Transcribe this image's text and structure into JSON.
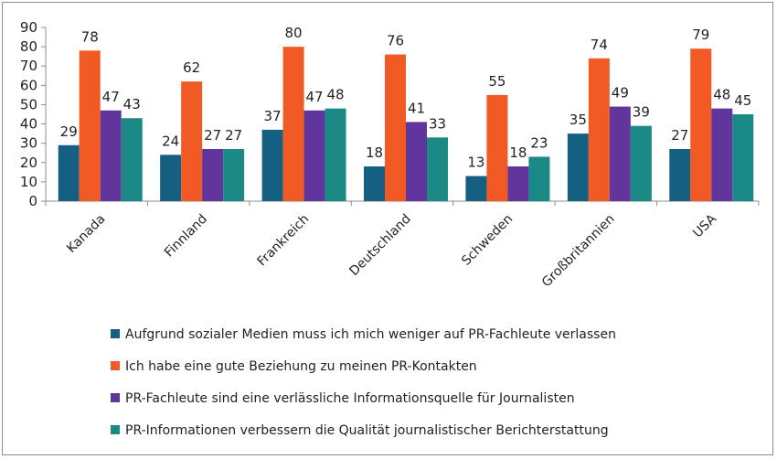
{
  "chart_data": {
    "type": "bar",
    "categories": [
      "Kanada",
      "Finnland",
      "Frankreich",
      "Deutschland",
      "Schweden",
      "Großbritannien",
      "USA"
    ],
    "series": [
      {
        "name": "Aufgrund sozialer Medien muss ich mich weniger auf PR-Fachleute verlassen",
        "color": "#156082",
        "values": [
          29,
          24,
          37,
          18,
          13,
          35,
          27
        ]
      },
      {
        "name": "Ich habe eine gute Beziehung zu meinen PR-Kontakten",
        "color": "#f15a24",
        "values": [
          78,
          62,
          80,
          76,
          55,
          74,
          79
        ]
      },
      {
        "name": "PR-Fachleute sind eine verlässliche Informationsquelle für Journalisten",
        "color": "#60359c",
        "values": [
          47,
          27,
          47,
          41,
          18,
          49,
          48
        ]
      },
      {
        "name": "PR-Informationen verbessern die Qualität journalistischer Berichterstattung",
        "color": "#1b8a87",
        "values": [
          43,
          27,
          48,
          33,
          23,
          39,
          45
        ]
      }
    ],
    "ylim": [
      0,
      90
    ],
    "yticks": [
      0,
      10,
      20,
      30,
      40,
      50,
      60,
      70,
      80,
      90
    ],
    "grid": false,
    "legend_position": "bottom",
    "title": "",
    "xlabel": "",
    "ylabel": ""
  }
}
